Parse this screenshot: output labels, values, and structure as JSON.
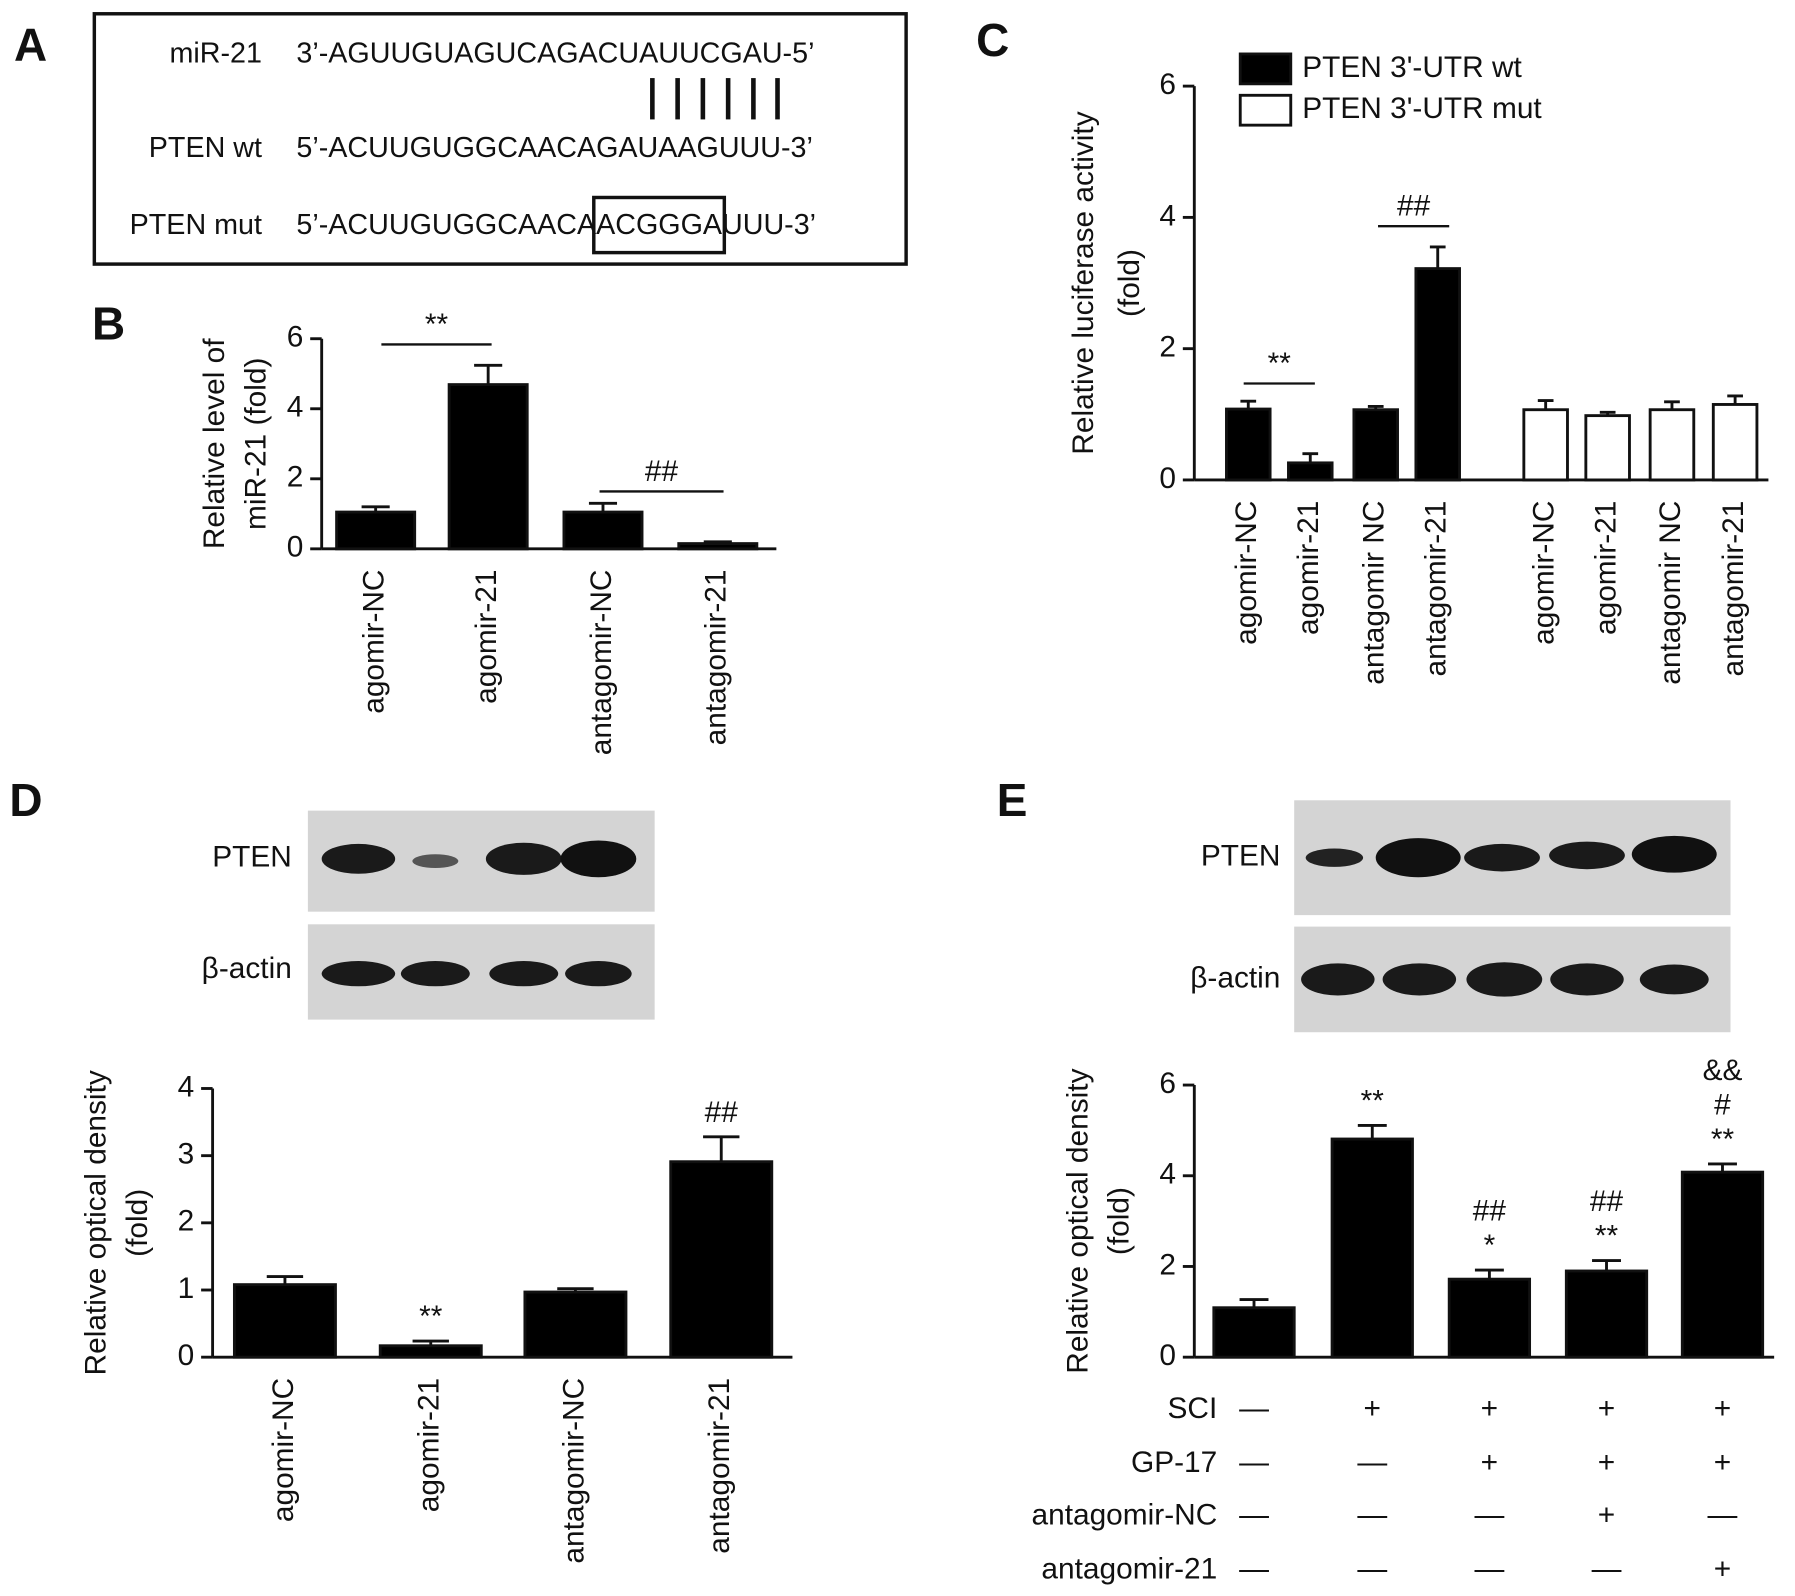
{
  "panel_a": {
    "label": "A",
    "rows": [
      {
        "name": "miR-21",
        "sequence": "3’-AGUUGUAGUCAGACUAUUCGAU-5’"
      },
      {
        "name": "PTEN wt",
        "sequence": "5’-ACUUGUGGCAACAGAUAAGUUU-3’"
      },
      {
        "name": "PTEN mut",
        "sequence": [
          "5’-ACUUGUGGCAACA",
          "ACGGGA",
          "UUU-3’"
        ]
      }
    ]
  },
  "chart_data": [
    {
      "type": "bar",
      "panel_label": "B",
      "y_label": [
        "Relative level of",
        "miR-21 (fold)"
      ],
      "categories": [
        "agomir-NC",
        "agomir-21",
        "antagomir-NC",
        "antagomir-21"
      ],
      "values": [
        1.05,
        4.69,
        1.05,
        0.15
      ],
      "errors": [
        0.15,
        0.55,
        0.25,
        0.05
      ],
      "color": "#000000",
      "annotations": [
        "**",
        "##"
      ],
      "ylim": [
        0,
        6
      ],
      "yticks": [
        0,
        2,
        4,
        6
      ]
    },
    {
      "type": "bar",
      "panel_label": "C",
      "y_label": [
        "Relative luciferase activity",
        "(fold)"
      ],
      "categories": [
        "agomir-NC",
        "agomir-21",
        "antagomir NC",
        "antagomir-21"
      ],
      "series": [
        {
          "name": "PTEN 3'-UTR wt",
          "color": "#000000",
          "values": [
            1.08,
            0.26,
            1.07,
            3.22
          ],
          "errors": [
            0.12,
            0.14,
            0.05,
            0.33
          ]
        },
        {
          "name": "PTEN 3'-UTR mut",
          "color": "#ffffff",
          "values": [
            1.07,
            0.98,
            1.07,
            1.15
          ],
          "errors": [
            0.14,
            0.05,
            0.12,
            0.13
          ]
        }
      ],
      "annotations": [
        "**",
        "##"
      ],
      "legend": "top-left",
      "ylim": [
        0,
        6
      ],
      "yticks": [
        0,
        2,
        4,
        6
      ]
    },
    {
      "type": "bar",
      "panel_label": "D",
      "y_label": [
        "Relative optical density",
        "(fold)"
      ],
      "blot_labels": [
        "PTEN",
        "β-actin"
      ],
      "categories": [
        "agomir-NC",
        "agomir-21",
        "antagomir-NC",
        "antagomir-21"
      ],
      "values": [
        1.08,
        0.17,
        0.97,
        2.91
      ],
      "errors": [
        0.12,
        0.07,
        0.05,
        0.37
      ],
      "color": "#000000",
      "bar_annotations": [
        [],
        [
          "**"
        ],
        [],
        [
          "##"
        ]
      ],
      "ylim": [
        0,
        4
      ],
      "yticks": [
        0,
        1,
        2,
        3,
        4
      ]
    },
    {
      "type": "bar",
      "panel_label": "E",
      "y_label": [
        "Relative optical density",
        "(fold)"
      ],
      "blot_labels": [
        "PTEN",
        "β-actin"
      ],
      "values": [
        1.09,
        4.81,
        1.72,
        1.9,
        4.08
      ],
      "errors": [
        0.18,
        0.3,
        0.2,
        0.23,
        0.18
      ],
      "color": "#000000",
      "bar_annotations": [
        [],
        [
          "**"
        ],
        [
          "##",
          "*"
        ],
        [
          "##",
          "**"
        ],
        [
          "&&",
          "#",
          "**"
        ]
      ],
      "conditions": [
        {
          "name": "SCI",
          "signs": [
            "—",
            "+",
            "+",
            "+",
            "+"
          ]
        },
        {
          "name": "GP-17",
          "signs": [
            "—",
            "—",
            "+",
            "+",
            "+"
          ]
        },
        {
          "name": "antagomir-NC",
          "signs": [
            "—",
            "—",
            "—",
            "+",
            "—"
          ]
        },
        {
          "name": "antagomir-21",
          "signs": [
            "—",
            "—",
            "—",
            "—",
            "+"
          ]
        }
      ],
      "ylim": [
        0,
        6
      ],
      "yticks": [
        0,
        2,
        4,
        6
      ]
    }
  ]
}
